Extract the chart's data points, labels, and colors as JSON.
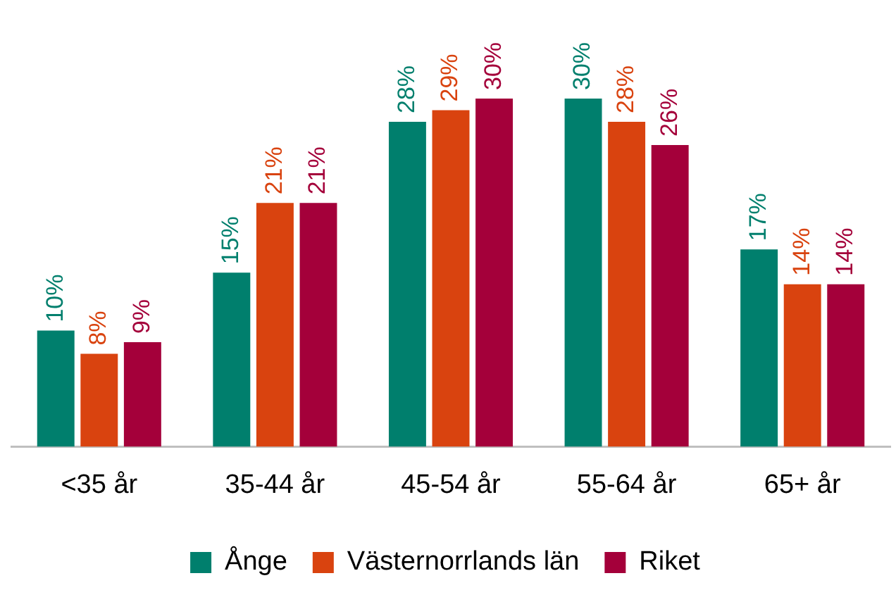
{
  "chart_data": {
    "type": "bar",
    "categories": [
      "<35 år",
      "35-44 år",
      "45-54 år",
      "55-64 år",
      "65+ år"
    ],
    "series": [
      {
        "name": "Ånge",
        "color": "#007f6d",
        "values": [
          10,
          15,
          28,
          30,
          17
        ],
        "value_labels": [
          "10%",
          "15%",
          "28%",
          "30%",
          "17%"
        ]
      },
      {
        "name": "Västernorrlands län",
        "color": "#d9430f",
        "values": [
          8,
          21,
          29,
          28,
          14
        ],
        "value_labels": [
          "8%",
          "21%",
          "29%",
          "28%",
          "14%"
        ]
      },
      {
        "name": "Riket",
        "color": "#a4003a",
        "values": [
          9,
          21,
          30,
          26,
          14
        ],
        "value_labels": [
          "9%",
          "21%",
          "30%",
          "26%",
          "14%"
        ]
      }
    ],
    "tick_labels": "x",
    "grid": false,
    "legend": "bottom"
  }
}
